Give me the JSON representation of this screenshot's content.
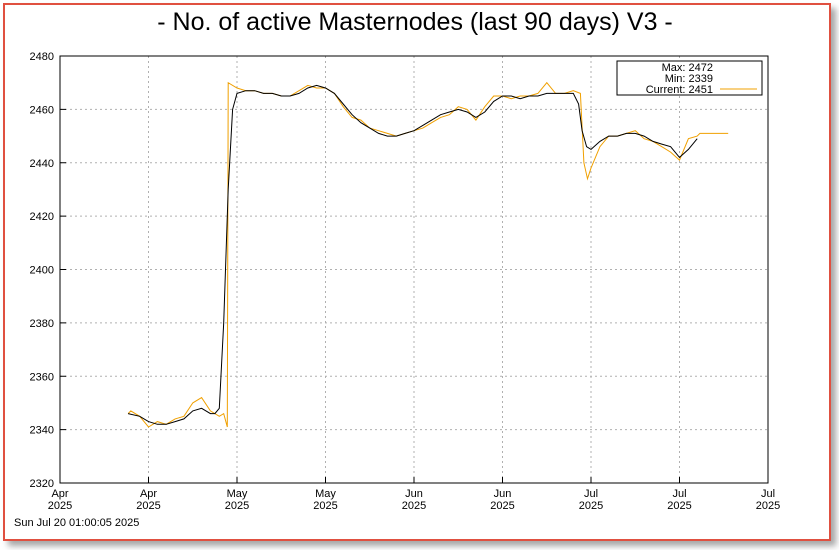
{
  "chart_data": {
    "type": "line",
    "title": "- No. of active Masternodes (last 90 days) V3 -",
    "footer": "Sun Jul 20 01:00:05 2025",
    "annotations": [
      "Max: 2472",
      "Min: 2339"
    ],
    "xlim": [
      0,
      80
    ],
    "xticks": [
      {
        "value": 0,
        "label": "Apr 2025"
      },
      {
        "value": 10,
        "label": "Apr 2025"
      },
      {
        "value": 20,
        "label": "May 2025"
      },
      {
        "value": 30,
        "label": "May 2025"
      },
      {
        "value": 40,
        "label": "Jun 2025"
      },
      {
        "value": 50,
        "label": "Jun 2025"
      },
      {
        "value": 60,
        "label": "Jul 2025"
      },
      {
        "value": 70,
        "label": "Jul 2025"
      },
      {
        "value": 80,
        "label": "Jul 2025"
      }
    ],
    "ylim": [
      2320,
      2480
    ],
    "yticks": [
      2320,
      2340,
      2360,
      2380,
      2400,
      2420,
      2440,
      2460,
      2480
    ],
    "grid": true,
    "series": [
      {
        "name": "Current: 2451",
        "color": "#f0a000",
        "x": [
          7.7,
          8,
          9,
          10,
          11,
          12,
          13,
          14,
          15,
          16,
          17,
          18,
          18.5,
          18.9,
          19,
          20,
          21,
          22,
          23,
          24,
          25,
          26,
          27,
          28,
          29,
          30,
          31,
          32,
          33,
          34,
          35,
          36,
          37,
          38,
          39,
          40,
          41,
          42,
          43,
          44,
          45,
          46,
          47,
          48,
          49,
          50,
          51,
          52,
          53,
          54,
          55,
          56,
          57,
          58,
          58.8,
          59.2,
          59.6,
          60,
          61,
          62,
          63,
          64,
          65,
          66,
          67,
          68,
          69,
          70,
          71,
          72,
          72.3,
          74,
          75.5
        ],
        "values": [
          2346,
          2347,
          2345,
          2341,
          2343,
          2342,
          2344,
          2345,
          2350,
          2352,
          2347,
          2345,
          2346,
          2341,
          2470,
          2468,
          2467,
          2467,
          2466,
          2466,
          2465,
          2465,
          2467,
          2469,
          2468,
          2468,
          2466,
          2461,
          2457,
          2456,
          2453,
          2452,
          2451,
          2450,
          2451,
          2452,
          2453,
          2455,
          2457,
          2458,
          2461,
          2460,
          2456,
          2461,
          2465,
          2465,
          2464,
          2465,
          2465,
          2466,
          2470,
          2466,
          2466,
          2467,
          2466,
          2440,
          2434,
          2438,
          2446,
          2450,
          2450,
          2451,
          2452,
          2449,
          2448,
          2446,
          2444,
          2441,
          2449,
          2450,
          2451,
          2451,
          2451
        ]
      },
      {
        "color": "#000000",
        "x": [
          7.7,
          9,
          10,
          11,
          12,
          13,
          14,
          15,
          16,
          17,
          17.5,
          18,
          18.5,
          19,
          19.5,
          20,
          21,
          22,
          23,
          24,
          25,
          26,
          27,
          28,
          29,
          30,
          31,
          32,
          33,
          34,
          35,
          36,
          37,
          38,
          39,
          40,
          41,
          42,
          43,
          44,
          45,
          46,
          47,
          48,
          49,
          50,
          51,
          52,
          53,
          54,
          55,
          56,
          57,
          58,
          58.6,
          59,
          59.5,
          60,
          61,
          62,
          63,
          64,
          65,
          66,
          67,
          68,
          69,
          70,
          71,
          72
        ],
        "values": [
          2346,
          2345,
          2343,
          2342,
          2342,
          2343,
          2344,
          2347,
          2348,
          2346,
          2346,
          2348,
          2380,
          2430,
          2460,
          2466,
          2467,
          2467,
          2466,
          2466,
          2465,
          2465,
          2466,
          2468,
          2469,
          2468,
          2466,
          2462,
          2458,
          2455,
          2453,
          2451,
          2450,
          2450,
          2451,
          2452,
          2454,
          2456,
          2458,
          2459,
          2460,
          2459,
          2457,
          2459,
          2463,
          2465,
          2465,
          2464,
          2465,
          2465,
          2466,
          2466,
          2466,
          2466,
          2462,
          2452,
          2446,
          2445,
          2448,
          2450,
          2450,
          2451,
          2451,
          2450,
          2448,
          2447,
          2446,
          2442,
          2445,
          2449
        ]
      }
    ]
  }
}
